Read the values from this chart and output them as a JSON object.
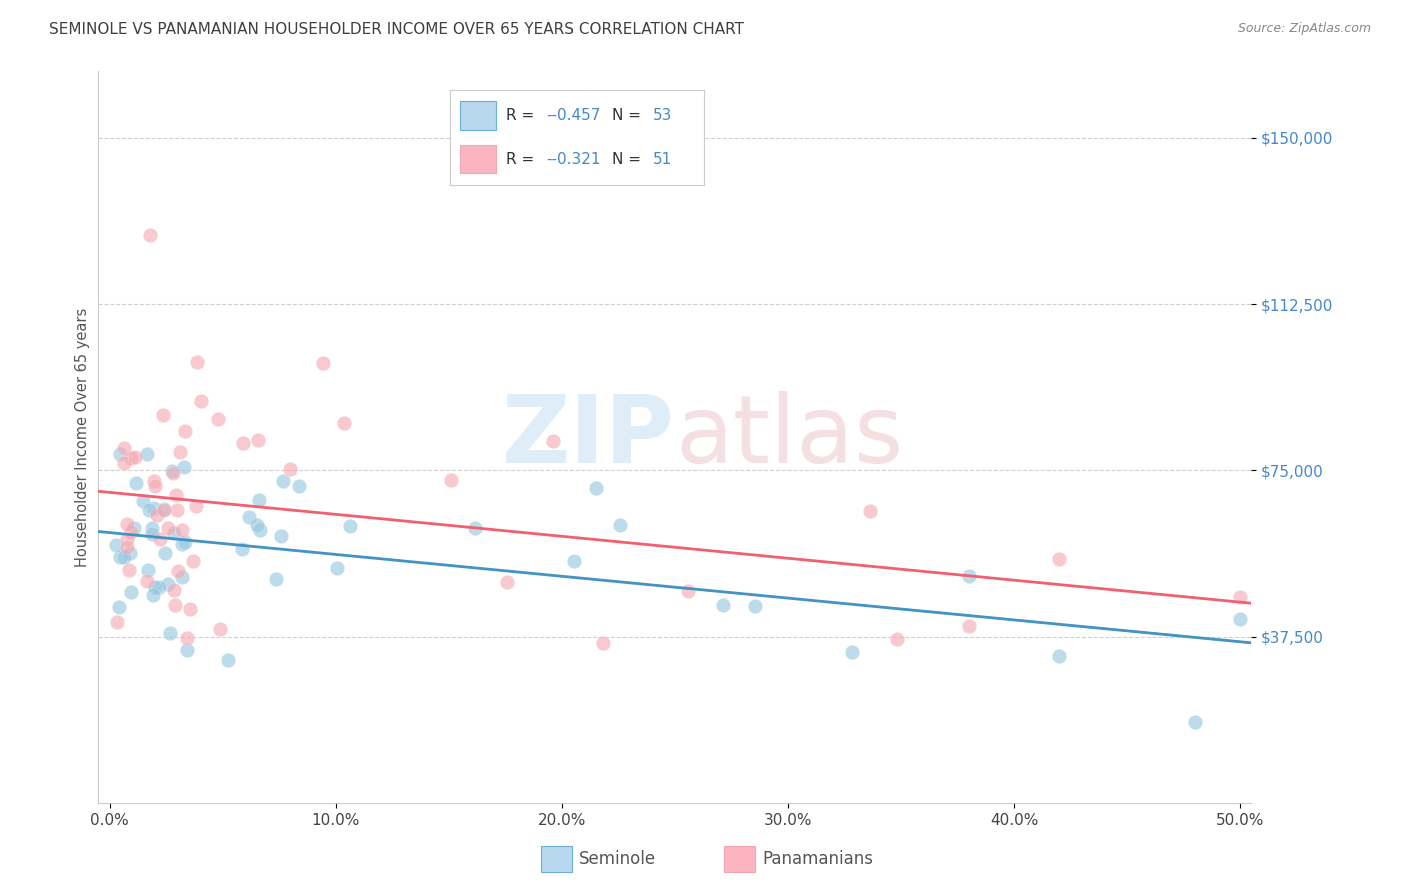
{
  "title": "SEMINOLE VS PANAMANIAN HOUSEHOLDER INCOME OVER 65 YEARS CORRELATION CHART",
  "source": "Source: ZipAtlas.com",
  "ylabel": "Householder Income Over 65 years",
  "ytick_labels": [
    "$37,500",
    "$75,000",
    "$112,500",
    "$150,000"
  ],
  "ytick_vals": [
    37500,
    75000,
    112500,
    150000
  ],
  "ylim": [
    0,
    165000
  ],
  "xlim": [
    -0.005,
    0.505
  ],
  "xlabel_ticks": [
    "0.0%",
    "10.0%",
    "20.0%",
    "30.0%",
    "40.0%",
    "50.0%"
  ],
  "xlabel_vals": [
    0.0,
    0.1,
    0.2,
    0.3,
    0.4,
    0.5
  ],
  "seminole_color": "#92c5de",
  "panamanian_color": "#f4a6b0",
  "seminole_line_color": "#4393c3",
  "panamanian_line_color": "#f06070",
  "legend_R_seminole": "-0.457",
  "legend_N_seminole": "53",
  "legend_R_panamanian": "-0.321",
  "legend_N_panamanian": "51",
  "bottom_legend_seminole": "Seminole",
  "bottom_legend_panamanian": "Panamanians",
  "seminole_marker_color": "#92c5de",
  "panamanian_marker_color": "#f4a6b0",
  "watermark_zip_color": "#b8d8f0",
  "watermark_atlas_color": "#e8b8c0",
  "grid_color": "#d0d0d0",
  "title_color": "#404040",
  "tick_color": "#4488cc",
  "legend_box_color": "#cccccc"
}
